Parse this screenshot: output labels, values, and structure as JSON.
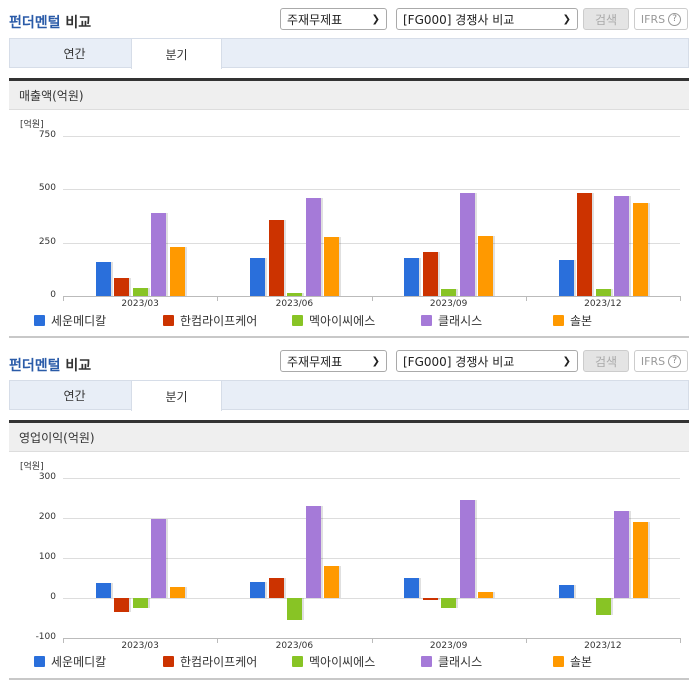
{
  "sections": [
    {
      "header": {
        "title_blue": "펀더멘털",
        "title_rest": " 비교"
      },
      "select_type": {
        "value": "주재무제표"
      },
      "select_group": {
        "value": "[FG000] 경쟁사 비교"
      },
      "search_button": "검색",
      "ifrs_button": "IFRS",
      "ifrs_help": "?",
      "tabs": [
        {
          "label": "연간",
          "active": false
        },
        {
          "label": "분기",
          "active": true
        }
      ],
      "chart_title": "매출액(억원)",
      "unit": "[억원]",
      "yticks": [
        "750",
        "500",
        "250",
        "0"
      ],
      "categories": [
        "2023/03",
        "2023/06",
        "2023/09",
        "2023/12"
      ]
    },
    {
      "header": {
        "title_blue": "펀더멘털",
        "title_rest": " 비교"
      },
      "select_type": {
        "value": "주재무제표"
      },
      "select_group": {
        "value": "[FG000] 경쟁사 비교"
      },
      "search_button": "검색",
      "ifrs_button": "IFRS",
      "ifrs_help": "?",
      "tabs": [
        {
          "label": "연간",
          "active": false
        },
        {
          "label": "분기",
          "active": true
        }
      ],
      "chart_title": "영업이익(억원)",
      "unit": "[억원]",
      "yticks": [
        "300",
        "200",
        "100",
        "0",
        "-100"
      ],
      "categories": [
        "2023/03",
        "2023/06",
        "2023/09",
        "2023/12"
      ]
    }
  ],
  "legend": [
    {
      "label": "세운메디칼",
      "color": "#2a6fdb"
    },
    {
      "label": "한컴라이프케어",
      "color": "#cc3300"
    },
    {
      "label": "멕아이씨에스",
      "color": "#88c425"
    },
    {
      "label": "클래시스",
      "color": "#a57ad8"
    },
    {
      "label": "솔본",
      "color": "#ff9900"
    }
  ],
  "chart_data": [
    {
      "type": "bar",
      "title": "매출액(억원)",
      "xlabel": "",
      "ylabel": "[억원]",
      "ylim": [
        0,
        750
      ],
      "yticks": [
        0,
        250,
        500,
        750
      ],
      "grid": true,
      "legend_position": "bottom",
      "categories": [
        "2023/03",
        "2023/06",
        "2023/09",
        "2023/12"
      ],
      "series": [
        {
          "name": "세운메디칼",
          "color": "#2a6fdb",
          "values": [
            160,
            178,
            178,
            169
          ]
        },
        {
          "name": "한컴라이프케어",
          "color": "#cc3300",
          "values": [
            85,
            357,
            207,
            484
          ]
        },
        {
          "name": "멕아이씨에스",
          "color": "#88c425",
          "values": [
            38,
            14,
            33,
            33
          ]
        },
        {
          "name": "클래시스",
          "color": "#a57ad8",
          "values": [
            387,
            460,
            484,
            470
          ]
        },
        {
          "name": "솔본",
          "color": "#ff9900",
          "values": [
            232,
            277,
            282,
            437
          ]
        }
      ]
    },
    {
      "type": "bar",
      "title": "영업이익(억원)",
      "xlabel": "",
      "ylabel": "[억원]",
      "ylim": [
        -100,
        300
      ],
      "yticks": [
        -100,
        0,
        100,
        200,
        300
      ],
      "grid": true,
      "legend_position": "bottom",
      "categories": [
        "2023/03",
        "2023/06",
        "2023/09",
        "2023/12"
      ],
      "series": [
        {
          "name": "세운메디칼",
          "color": "#2a6fdb",
          "values": [
            38,
            40,
            50,
            33
          ]
        },
        {
          "name": "한컴라이프케어",
          "color": "#cc3300",
          "values": [
            -36,
            50,
            -4,
            null
          ]
        },
        {
          "name": "멕아이씨에스",
          "color": "#88c425",
          "values": [
            -25,
            -55,
            -24,
            -42
          ]
        },
        {
          "name": "클래시스",
          "color": "#a57ad8",
          "values": [
            198,
            230,
            245,
            218
          ]
        },
        {
          "name": "솔본",
          "color": "#ff9900",
          "values": [
            27,
            80,
            14,
            190
          ]
        }
      ]
    }
  ]
}
